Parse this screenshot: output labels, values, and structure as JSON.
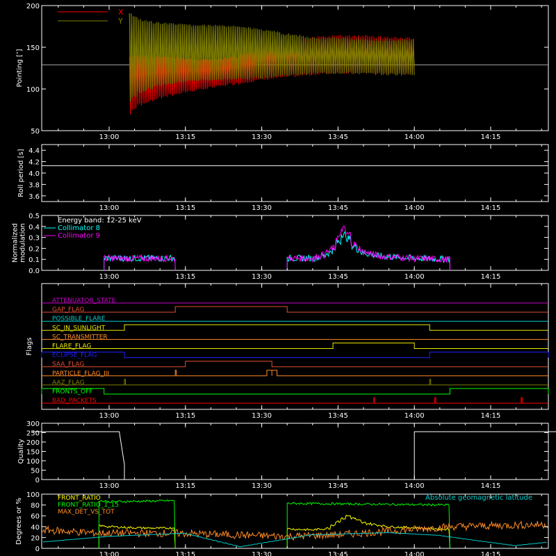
{
  "chart_data": [
    {
      "id": "pointing",
      "type": "line",
      "ylabel": "Pointing [″]",
      "ylim": [
        50,
        200
      ],
      "yticks": [
        50,
        100,
        150,
        200
      ],
      "xticks": [
        "13:00",
        "13:15",
        "13:30",
        "13:45",
        "14:00",
        "14:15"
      ],
      "legend": [
        {
          "name": "X",
          "color": "#ff0000"
        },
        {
          "name": "Y",
          "color": "#808000"
        }
      ],
      "reference_value": 129,
      "series": [
        {
          "name": "X",
          "color": "#ff0000",
          "x": [
            "13:04",
            "13:06",
            "13:10",
            "13:15",
            "13:20",
            "13:25",
            "13:30",
            "13:35",
            "13:40",
            "13:45",
            "13:50",
            "13:55",
            "14:00"
          ],
          "lo": [
            68,
            80,
            88,
            95,
            100,
            105,
            110,
            113,
            116,
            118,
            118,
            117,
            117
          ],
          "hi": [
            140,
            142,
            140,
            138,
            136,
            140,
            150,
            158,
            163,
            165,
            165,
            163,
            162
          ]
        },
        {
          "name": "Y",
          "color": "#808000",
          "x": [
            "13:04",
            "13:06",
            "13:10",
            "13:15",
            "13:20",
            "13:25",
            "13:30",
            "13:35",
            "13:40",
            "13:45",
            "13:50",
            "13:55",
            "14:00"
          ],
          "lo": [
            84,
            95,
            103,
            108,
            110,
            110,
            112,
            115,
            117,
            118,
            117,
            116,
            116
          ],
          "hi": [
            192,
            184,
            180,
            178,
            177,
            176,
            172,
            167,
            163,
            162,
            161,
            160,
            160
          ]
        }
      ]
    },
    {
      "id": "roll",
      "type": "line",
      "ylabel": "Roll period [s]",
      "ylim": [
        3.5,
        4.5
      ],
      "yticks": [
        "3.6",
        "3.8",
        "4.0",
        "4.2",
        "4.4"
      ],
      "xticks": [
        "13:00",
        "13:15",
        "13:30",
        "13:45",
        "14:00",
        "14:15"
      ],
      "series": [
        {
          "name": "",
          "color": "#ffffff",
          "x": [
            "12:45",
            "14:30"
          ],
          "y": [
            4.13,
            4.13
          ]
        }
      ]
    },
    {
      "id": "modulation",
      "type": "line",
      "ylabel": "Normalized modulation",
      "ylabel_lines": [
        "Normalized",
        "modulation"
      ],
      "ylim": [
        0,
        0.5
      ],
      "yticks": [
        "0.0",
        "0.1",
        "0.2",
        "0.3",
        "0.4",
        "0.5"
      ],
      "xticks": [
        "13:00",
        "13:15",
        "13:30",
        "13:45",
        "14:00",
        "14:15"
      ],
      "legend": [
        {
          "name": "Energy band: 12-25 keV",
          "color": "#ffffff"
        },
        {
          "name": "Collimator 8",
          "color": "#00ffff"
        },
        {
          "name": "Collimator 9",
          "color": "#ff00ff"
        }
      ],
      "gaps_value": 0,
      "intervals": [
        [
          "12:59",
          "13:13"
        ],
        [
          "13:35",
          "14:07"
        ]
      ],
      "series": [
        {
          "name": "Collimator 8",
          "color": "#00ffff",
          "x": [
            "13:40",
            "13:42",
            "13:44",
            "13:45",
            "13:46",
            "13:47",
            "13:48",
            "13:50",
            "13:53",
            "14:00",
            "14:07"
          ],
          "y": [
            0.11,
            0.13,
            0.18,
            0.26,
            0.33,
            0.29,
            0.22,
            0.16,
            0.13,
            0.11,
            0.1
          ]
        },
        {
          "name": "Collimator 9",
          "color": "#ff00ff",
          "x": [
            "13:40",
            "13:42",
            "13:44",
            "13:45",
            "13:46",
            "13:47",
            "13:48",
            "13:50",
            "13:53",
            "14:00",
            "14:07"
          ],
          "y": [
            0.11,
            0.14,
            0.2,
            0.3,
            0.38,
            0.33,
            0.24,
            0.17,
            0.13,
            0.11,
            0.1
          ]
        }
      ]
    },
    {
      "id": "flags",
      "type": "line",
      "ylabel": "Flags",
      "xticks": [
        "13:00",
        "13:15",
        "13:30",
        "13:45",
        "14:00",
        "14:15"
      ],
      "flags": [
        {
          "name": "ATTENUATOR_STATE",
          "color": "#cc00cc",
          "on": []
        },
        {
          "name": "GAP_FLAG",
          "color": "#e05030",
          "on": [
            [
              "13:13",
              "13:35"
            ]
          ]
        },
        {
          "name": "POSSIBLE_FLARE",
          "color": "#00cccc",
          "on": []
        },
        {
          "name": "SC_IN_SUNLIGHT",
          "color": "#e8e800",
          "on": [
            [
              "13:03",
              "14:03"
            ]
          ]
        },
        {
          "name": "SC_TRANSMITTER",
          "color": "#ff8c28",
          "on": []
        },
        {
          "name": "FLARE_FLAG",
          "color": "#e8e800",
          "on": [
            [
              "13:44",
              "14:00"
            ]
          ]
        },
        {
          "name": "ECLIPSE_FLAG",
          "color": "#2020ff",
          "on": [
            [
              "12:45",
              "13:03"
            ],
            [
              "14:03",
              "14:30"
            ]
          ]
        },
        {
          "name": "SAA_FLAG",
          "color": "#e05030",
          "on": [
            [
              "13:15",
              "13:32"
            ]
          ]
        },
        {
          "name": "PARTICLE_FLAG_III",
          "color": "#ff8c28",
          "on": [
            [
              "13:13",
              "13:13"
            ],
            [
              "13:31",
              "13:32"
            ],
            [
              "13:32",
              "13:33"
            ]
          ]
        },
        {
          "name": "AAZ_FLAG",
          "color": "#808000",
          "on": [
            [
              "13:03",
              "13:03"
            ],
            [
              "14:03",
              "14:03"
            ]
          ]
        },
        {
          "name": "FRONTS_OFF",
          "color": "#00ff00",
          "on": [
            [
              "12:45",
              "12:59"
            ],
            [
              "14:07",
              "14:30"
            ]
          ]
        },
        {
          "name": "BAD_PACKETS",
          "color": "#ff0000",
          "on": [
            [
              "13:52",
              "13:52"
            ],
            [
              "14:04",
              "14:04"
            ],
            [
              "14:21",
              "14:21"
            ]
          ]
        }
      ]
    },
    {
      "id": "quality",
      "type": "line",
      "ylabel": "Quality",
      "ylim": [
        0,
        300
      ],
      "yticks": [
        0,
        50,
        100,
        150,
        200,
        250,
        300
      ],
      "xticks": [
        "13:00",
        "13:15",
        "13:30",
        "13:45",
        "14:00",
        "14:15"
      ],
      "series": [
        {
          "name": "",
          "color": "#ffffff",
          "x": [
            "12:45",
            "13:02",
            "13:03",
            "13:03",
            "13:59",
            "14:00",
            "14:00",
            "14:30"
          ],
          "y": [
            255,
            255,
            80,
            0,
            0,
            0,
            255,
            255
          ]
        }
      ]
    },
    {
      "id": "ratios",
      "type": "line",
      "ylabel": "Degrees or %",
      "ylim": [
        0,
        100
      ],
      "yticks": [
        0,
        20,
        40,
        60,
        80,
        100
      ],
      "xticks": [
        "13:00",
        "13:15",
        "13:30",
        "13:45",
        "14:00",
        "14:15"
      ],
      "legend": [
        {
          "name": "FRONT_RATIO",
          "color": "#ffff00"
        },
        {
          "name": "FRONT_RATIO_1_15",
          "color": "#00ff00"
        },
        {
          "name": "MAX_DET_VS_TOT",
          "color": "#ff8c28"
        }
      ],
      "legend_right": {
        "name": "Absolute geomagnetic latitude",
        "color": "#00cccc"
      },
      "series": [
        {
          "name": "FRONT_RATIO",
          "color": "#ffff00",
          "x": [
            "12:58",
            "13:00",
            "13:05",
            "13:10",
            "13:13",
            "13:35",
            "13:40",
            "13:43",
            "13:45",
            "13:47",
            "13:50",
            "13:55",
            "14:00",
            "14:07"
          ],
          "y": [
            42,
            40,
            38,
            37,
            38,
            36,
            34,
            37,
            50,
            60,
            47,
            40,
            38,
            35
          ]
        },
        {
          "name": "FRONT_RATIO_1_15",
          "color": "#00ff00",
          "x": [
            "12:58",
            "13:00",
            "13:13",
            "13:35",
            "14:07"
          ],
          "y": [
            88,
            86,
            88,
            83,
            80
          ]
        },
        {
          "name": "MAX_DET_VS_TOT",
          "color": "#ff8c28",
          "x": [
            "12:45",
            "12:58",
            "13:13",
            "13:35",
            "13:45",
            "14:07",
            "14:30"
          ],
          "y": [
            35,
            28,
            28,
            22,
            25,
            40,
            45
          ]
        },
        {
          "name": "Absolute geomagnetic latitude",
          "color": "#00cccc",
          "x": [
            "12:45",
            "13:00",
            "13:15",
            "13:26",
            "13:40",
            "13:55",
            "14:05",
            "14:20",
            "14:30"
          ],
          "y": [
            10,
            22,
            28,
            3,
            25,
            29,
            24,
            5,
            15
          ]
        }
      ]
    }
  ]
}
